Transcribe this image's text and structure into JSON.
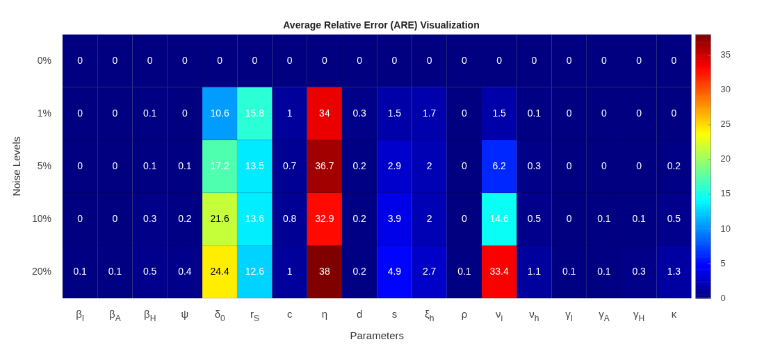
{
  "chart_data": {
    "type": "heatmap",
    "title": "Average Relative Error (ARE) Visualization",
    "xlabel": "Parameters",
    "ylabel": "Noise Levels",
    "categories": [
      "β$_{I}$",
      "β$_{A}$",
      "β$_{H}$",
      "ψ",
      "δ$_{0}$",
      "r$_{S}$",
      "c",
      "η",
      "d",
      "s",
      "ξ$_{h}$",
      "ρ",
      "ν$_{i}$",
      "ν$_{h}$",
      "γ$_{I}$",
      "γ$_{A}$",
      "γ$_{H}$",
      "κ"
    ],
    "y_categories": [
      "0%",
      "1%",
      "5%",
      "10%",
      "20%"
    ],
    "cells": [
      [
        0,
        0,
        0,
        0,
        0,
        0,
        0,
        0,
        0,
        0,
        0,
        0,
        0,
        0,
        0,
        0,
        0,
        0
      ],
      [
        0,
        0,
        0.1,
        0,
        10.6,
        15.8,
        1,
        34,
        0.3,
        1.5,
        1.7,
        0,
        1.5,
        0.1,
        0,
        0,
        0,
        0
      ],
      [
        0,
        0,
        0.1,
        0.1,
        17.2,
        13.5,
        0.7,
        36.7,
        0.2,
        2.9,
        2,
        0,
        6.2,
        0.3,
        0,
        0,
        0,
        0.2
      ],
      [
        0,
        0,
        0.3,
        0.2,
        21.6,
        13.6,
        0.8,
        32.9,
        0.2,
        3.9,
        2,
        0,
        14.6,
        0.5,
        0,
        0.1,
        0.1,
        0.5
      ],
      [
        0.1,
        0.1,
        0.5,
        0.4,
        24.4,
        12.6,
        1,
        38,
        0.2,
        4.9,
        2.7,
        0.1,
        33.4,
        1.1,
        0.1,
        0.1,
        0.3,
        1.3
      ]
    ],
    "clim": [
      0,
      38
    ],
    "cticks": [
      0,
      5,
      10,
      15,
      20,
      25,
      30,
      35
    ],
    "data_labels": true
  }
}
